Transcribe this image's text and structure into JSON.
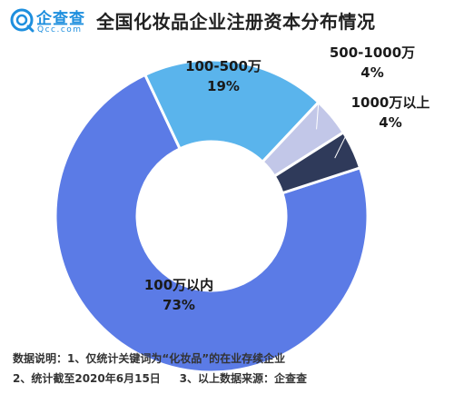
{
  "logo": {
    "name": "企查查",
    "domain": "Qcc.com",
    "icon": "qcc-logo-icon"
  },
  "title": "全国化妆品企业注册资本分布情况",
  "chart_data": {
    "type": "pie",
    "title": "全国化妆品企业注册资本分布情况",
    "donut": true,
    "categories": [
      "100万以内",
      "100-500万",
      "500-1000万",
      "1000万以上"
    ],
    "values": [
      73,
      19,
      4,
      4
    ],
    "value_labels": [
      "73%",
      "19%",
      "4%",
      "4%"
    ],
    "colors": [
      "#5b7be6",
      "#5ab4ec",
      "#c2c7e8",
      "#2f3a5a"
    ]
  },
  "notes": {
    "line1": "数据说明：1、仅统计关键词为“化妆品”的在业存续企业",
    "line2": "2、统计截至2020年6月15日     3、以上数据来源：企查查"
  }
}
